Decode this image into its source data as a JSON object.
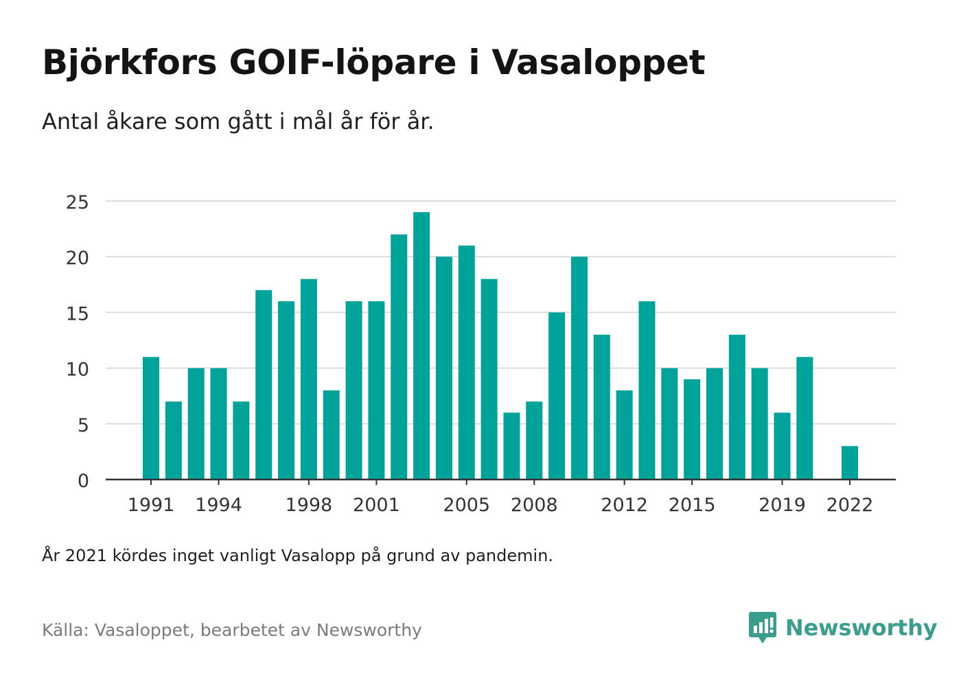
{
  "header": {
    "title": "Björkfors GOIF-löpare i Vasaloppet",
    "subtitle": "Antal åkare som gått i mål år för år."
  },
  "footer": {
    "note": "År 2021 kördes inget vanligt Vasalopp på grund av pandemin.",
    "source": "Källa: Vasaloppet, bearbetet av Newsworthy",
    "brand_name": "Newsworthy",
    "brand_icon": "newsworthy-logo-icon"
  },
  "colors": {
    "bar": "#00a39a",
    "grid": "#dcdcdc",
    "axis": "#333333",
    "brand": "#3a9e8f"
  },
  "chart_data": {
    "type": "bar",
    "categories": [
      "1991",
      "1992",
      "1993",
      "1994",
      "1995",
      "1996",
      "1997",
      "1998",
      "1999",
      "2000",
      "2001",
      "2002",
      "2003",
      "2004",
      "2005",
      "2006",
      "2007",
      "2008",
      "2009",
      "2010",
      "2011",
      "2012",
      "2013",
      "2014",
      "2015",
      "2016",
      "2017",
      "2018",
      "2019",
      "2020",
      "2021",
      "2022"
    ],
    "values": [
      11,
      7,
      10,
      10,
      7,
      17,
      16,
      18,
      8,
      16,
      16,
      22,
      24,
      20,
      21,
      18,
      6,
      7,
      15,
      20,
      13,
      8,
      16,
      10,
      9,
      10,
      13,
      10,
      6,
      11,
      null,
      3
    ],
    "xticks": [
      "1991",
      "1994",
      "1998",
      "2001",
      "2005",
      "2008",
      "2012",
      "2015",
      "2019",
      "2022"
    ],
    "yticks": [
      0,
      5,
      10,
      15,
      20,
      25
    ],
    "ylim": [
      0,
      25
    ],
    "grid": true,
    "legend": "none"
  }
}
